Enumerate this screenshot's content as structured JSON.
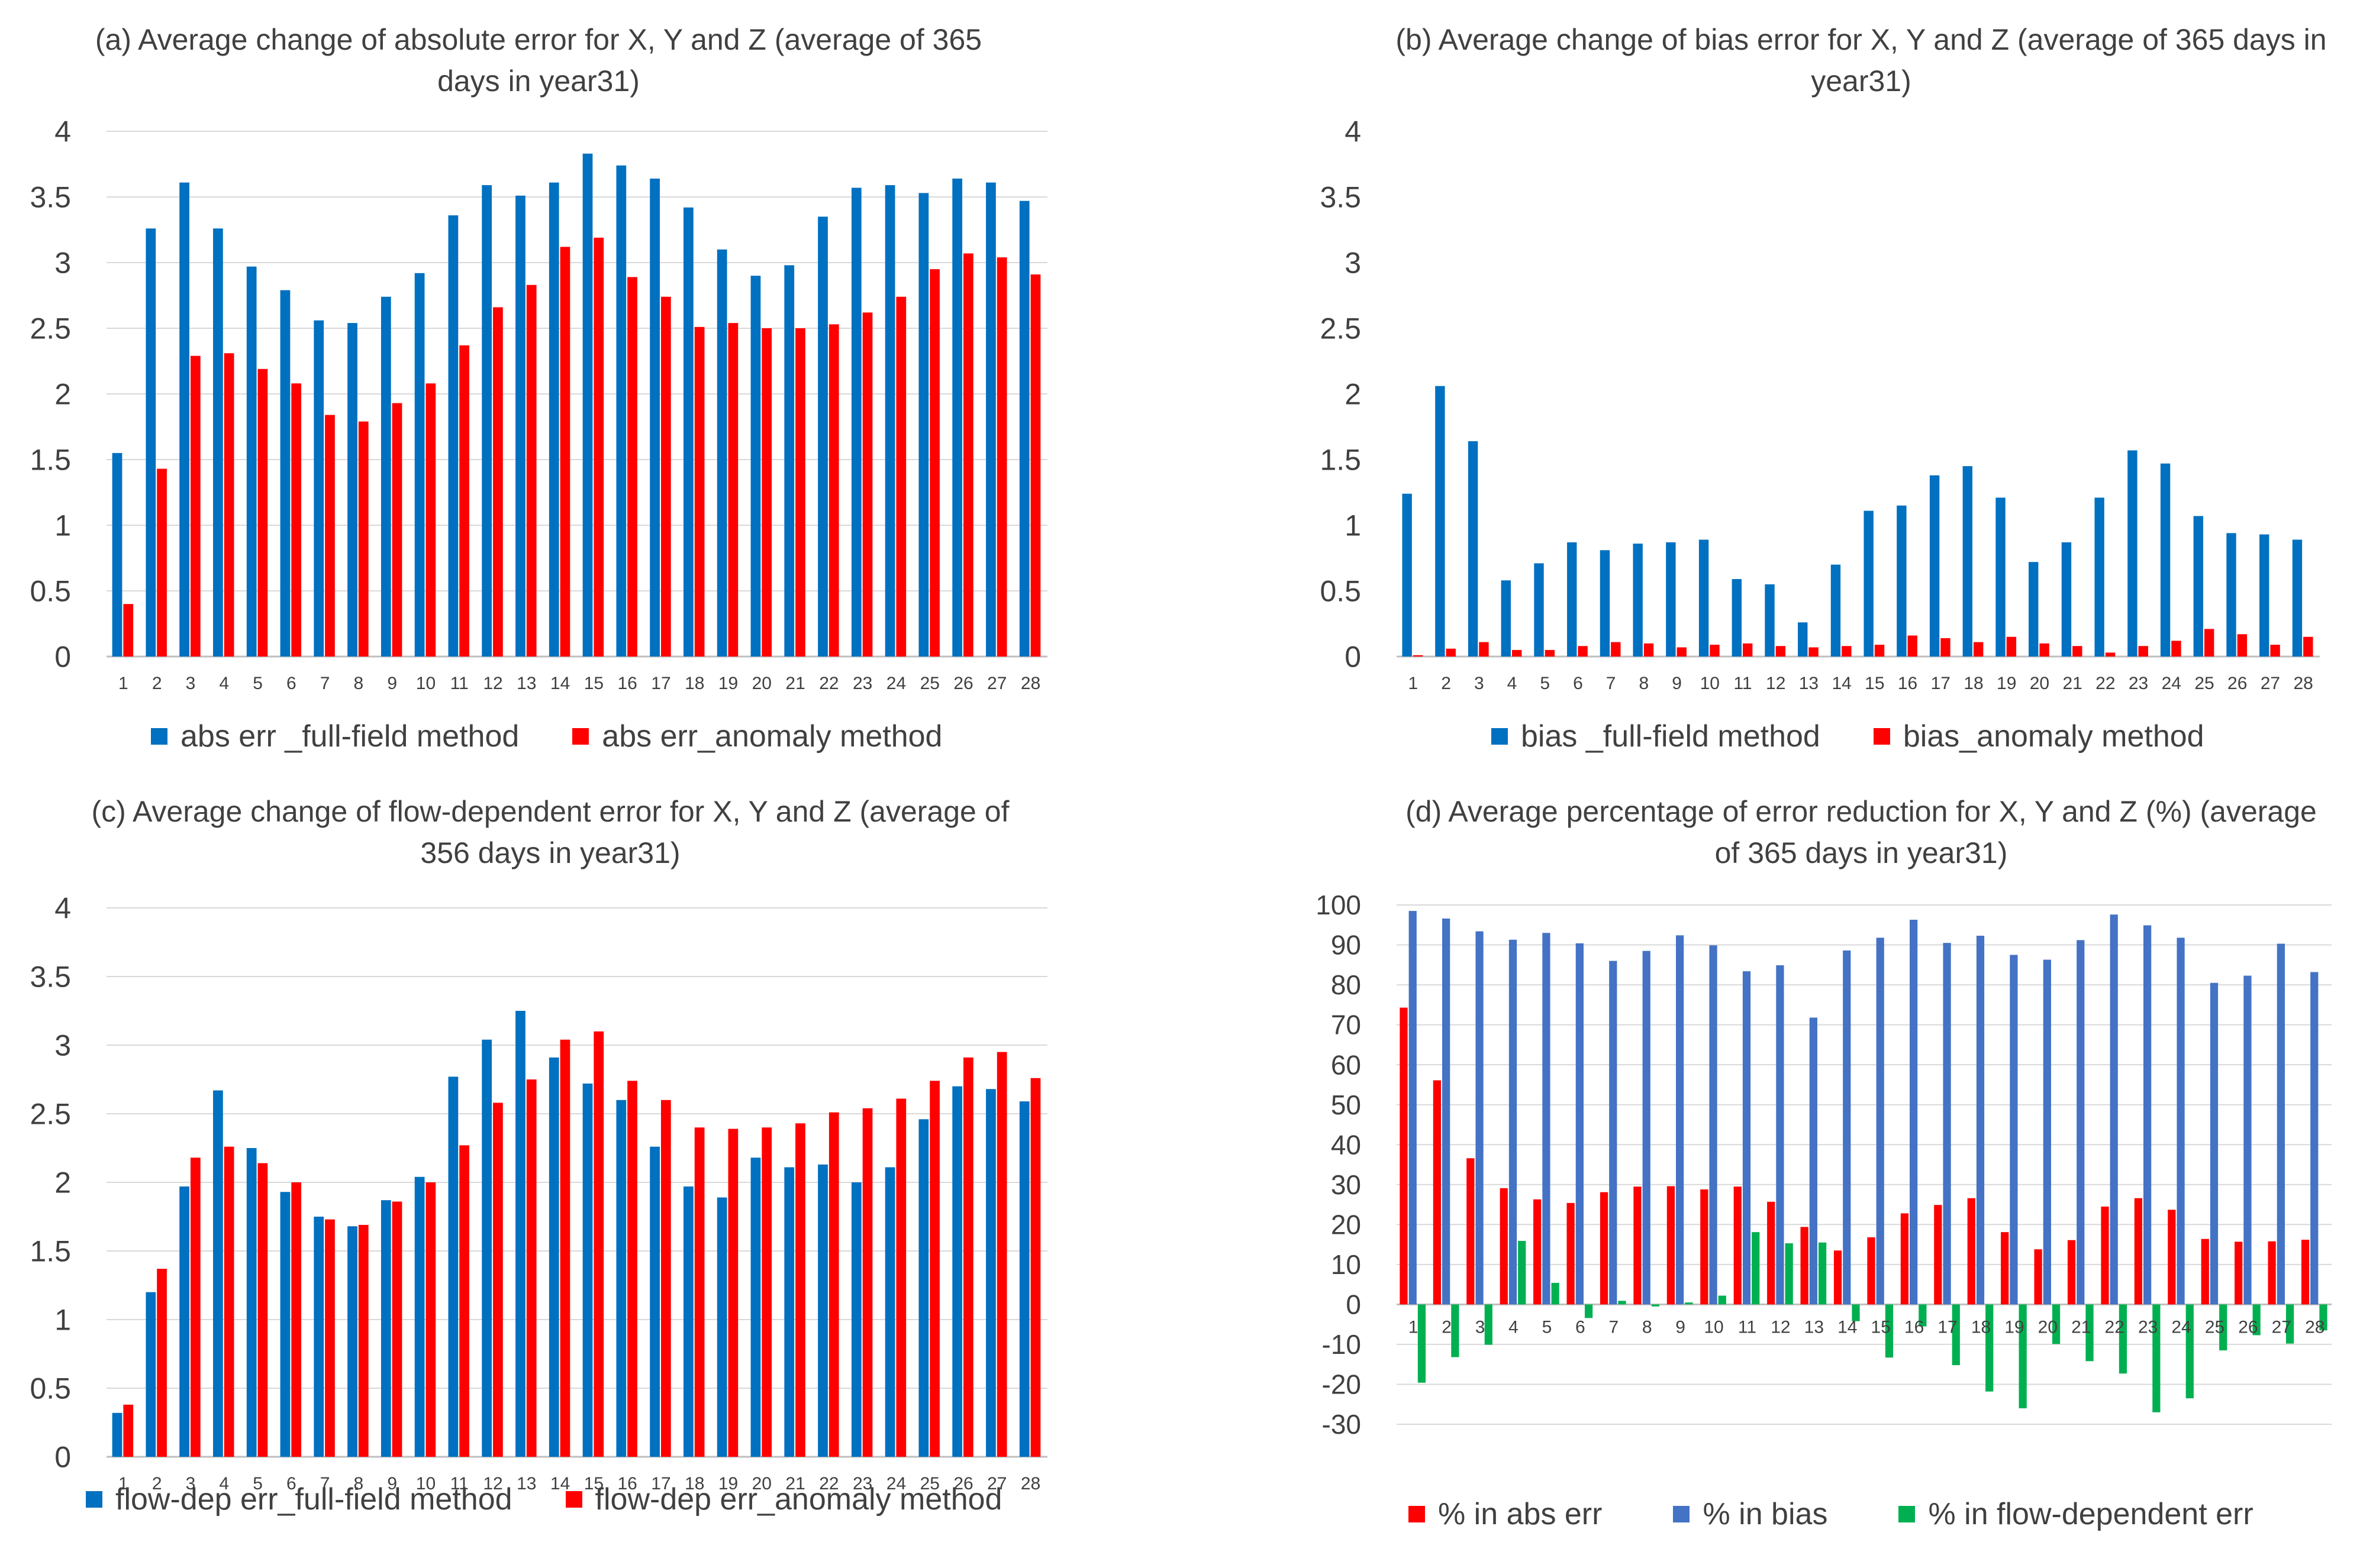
{
  "chart_data": [
    {
      "id": "a",
      "type": "bar",
      "title": "(a) Average change of absolute error for X, Y and Z (average of 365 days in year31)",
      "title_lines": [
        "(a) Average change of absolute error for X, Y and Z (average of 365",
        "days in year31)"
      ],
      "categories": [
        "1",
        "2",
        "3",
        "4",
        "5",
        "6",
        "7",
        "8",
        "9",
        "10",
        "11",
        "12",
        "13",
        "14",
        "15",
        "16",
        "17",
        "18",
        "19",
        "20",
        "21",
        "22",
        "23",
        "24",
        "25",
        "26",
        "27",
        "28"
      ],
      "ylim": [
        0,
        4
      ],
      "yticks": [
        "0",
        "0.5",
        "1",
        "1.5",
        "2",
        "2.5",
        "3",
        "3.5",
        "4"
      ],
      "grid": true,
      "series": [
        {
          "name": "abs err _full-field method",
          "color": "#0070C0",
          "values": [
            1.55,
            3.26,
            3.61,
            3.26,
            2.97,
            2.79,
            2.56,
            2.54,
            2.74,
            2.92,
            3.36,
            3.59,
            3.51,
            3.61,
            3.83,
            3.74,
            3.64,
            3.42,
            3.1,
            2.9,
            2.98,
            3.35,
            3.57,
            3.59,
            3.53,
            3.64,
            3.61,
            3.47
          ]
        },
        {
          "name": "abs err_anomaly method",
          "color": "#FF0000",
          "values": [
            0.4,
            1.43,
            2.29,
            2.31,
            2.19,
            2.08,
            1.84,
            1.79,
            1.93,
            2.08,
            2.37,
            2.66,
            2.83,
            3.12,
            3.19,
            2.89,
            2.74,
            2.51,
            2.54,
            2.5,
            2.5,
            2.53,
            2.62,
            2.74,
            2.95,
            3.07,
            3.04,
            2.91
          ]
        }
      ]
    },
    {
      "id": "b",
      "type": "bar",
      "title": "(b) Average change of bias error for X, Y and Z (average of 365 days in year31)",
      "title_lines": [
        "(b) Average change of bias error for X, Y and Z (average of 365 days in",
        "year31)"
      ],
      "categories": [
        "1",
        "2",
        "3",
        "4",
        "5",
        "6",
        "7",
        "8",
        "9",
        "10",
        "11",
        "12",
        "13",
        "14",
        "15",
        "16",
        "17",
        "18",
        "19",
        "20",
        "21",
        "22",
        "23",
        "24",
        "25",
        "26",
        "27",
        "28"
      ],
      "ylim": [
        0,
        4
      ],
      "yticks": [
        "0",
        "0.5",
        "1",
        "1.5",
        "2",
        "2.5",
        "3",
        "3.5",
        "4"
      ],
      "grid": false,
      "series": [
        {
          "name": "bias _full-field method",
          "color": "#0070C0",
          "values": [
            1.24,
            2.06,
            1.64,
            0.58,
            0.71,
            0.87,
            0.81,
            0.86,
            0.87,
            0.89,
            0.59,
            0.55,
            0.26,
            0.7,
            1.11,
            1.15,
            1.38,
            1.45,
            1.21,
            0.72,
            0.87,
            1.21,
            1.57,
            1.47,
            1.07,
            0.94,
            0.93,
            0.89
          ]
        },
        {
          "name": "bias_anomaly method",
          "color": "#FF0000",
          "values": [
            0.01,
            0.06,
            0.11,
            0.05,
            0.05,
            0.08,
            0.11,
            0.1,
            0.07,
            0.09,
            0.1,
            0.08,
            0.07,
            0.08,
            0.09,
            0.16,
            0.14,
            0.11,
            0.15,
            0.1,
            0.08,
            0.03,
            0.08,
            0.12,
            0.21,
            0.17,
            0.09,
            0.15
          ]
        }
      ]
    },
    {
      "id": "c",
      "type": "bar",
      "title": "(c) Average change of flow-dependent error for X, Y and Z (average of 356 days in year31)",
      "title_lines": [
        "(c) Average change of flow-dependent error for X, Y and Z (average of",
        "356 days in year31)"
      ],
      "categories": [
        "1",
        "2",
        "3",
        "4",
        "5",
        "6",
        "7",
        "8",
        "9",
        "10",
        "11",
        "12",
        "13",
        "14",
        "15",
        "16",
        "17",
        "18",
        "19",
        "20",
        "21",
        "22",
        "23",
        "24",
        "25",
        "26",
        "27",
        "28"
      ],
      "ylim": [
        0,
        4
      ],
      "yticks": [
        "0",
        "0.5",
        "1",
        "1.5",
        "2",
        "2.5",
        "3",
        "3.5",
        "4"
      ],
      "grid": true,
      "series": [
        {
          "name": "flow-dep err_full-field method",
          "color": "#0070C0",
          "values": [
            0.32,
            1.2,
            1.97,
            2.67,
            2.25,
            1.93,
            1.75,
            1.68,
            1.87,
            2.04,
            2.77,
            3.04,
            3.25,
            2.91,
            2.72,
            2.6,
            2.26,
            1.97,
            1.89,
            2.18,
            2.11,
            2.13,
            2.0,
            2.11,
            2.46,
            2.7,
            2.68,
            2.59
          ]
        },
        {
          "name": "flow-dep err_anomaly method",
          "color": "#FF0000",
          "values": [
            0.38,
            1.37,
            2.18,
            2.26,
            2.14,
            2.0,
            1.73,
            1.69,
            1.86,
            2.0,
            2.27,
            2.58,
            2.75,
            3.04,
            3.1,
            2.74,
            2.6,
            2.4,
            2.39,
            2.4,
            2.43,
            2.51,
            2.54,
            2.61,
            2.74,
            2.91,
            2.95,
            2.76
          ]
        }
      ]
    },
    {
      "id": "d",
      "type": "bar",
      "title": "(d) Average percentage of error reduction for X, Y and Z (%) (average of 365 days in year31)",
      "title_lines": [
        "(d) Average percentage of error reduction for X, Y and Z (%) (average",
        "of 365 days in year31)"
      ],
      "categories": [
        "1",
        "2",
        "3",
        "4",
        "5",
        "6",
        "7",
        "8",
        "9",
        "10",
        "11",
        "12",
        "13",
        "14",
        "15",
        "16",
        "17",
        "18",
        "19",
        "20",
        "21",
        "22",
        "23",
        "24",
        "25",
        "26",
        "27",
        "28"
      ],
      "ylim": [
        -30,
        100
      ],
      "yticks": [
        "-30",
        "-20",
        "-10",
        "0",
        "10",
        "20",
        "30",
        "40",
        "50",
        "60",
        "70",
        "80",
        "90",
        "100"
      ],
      "grid": true,
      "series": [
        {
          "name": "% in abs err",
          "color": "#FF0000",
          "values": [
            74.3,
            56.1,
            36.6,
            29.1,
            26.3,
            25.4,
            28.1,
            29.5,
            29.6,
            28.8,
            29.5,
            25.7,
            19.4,
            13.5,
            16.8,
            22.8,
            24.9,
            26.6,
            18.1,
            13.8,
            16.1,
            24.5,
            26.6,
            23.7,
            16.4,
            15.7,
            15.8,
            16.2
          ]
        },
        {
          "name": "% in bias",
          "color": "#4472C4",
          "values": [
            98.5,
            96.6,
            93.4,
            91.3,
            93.0,
            90.4,
            86.0,
            88.5,
            92.4,
            89.9,
            83.4,
            84.9,
            71.8,
            88.6,
            91.8,
            96.3,
            90.5,
            92.3,
            87.5,
            86.3,
            91.2,
            97.6,
            94.9,
            91.8,
            80.5,
            82.3,
            90.3,
            83.2
          ]
        },
        {
          "name": "% in flow-dependent err",
          "color": "#00B050",
          "values": [
            -19.6,
            -13.2,
            -10.1,
            15.9,
            5.4,
            -3.4,
            0.9,
            -0.5,
            0.5,
            2.2,
            18.1,
            15.3,
            15.5,
            -4.2,
            -13.3,
            -5.5,
            -15.2,
            -21.8,
            -26.0,
            -9.9,
            -14.2,
            -17.3,
            -27.0,
            -23.5,
            -11.5,
            -7.7,
            -9.8,
            -6.5
          ]
        }
      ]
    }
  ]
}
